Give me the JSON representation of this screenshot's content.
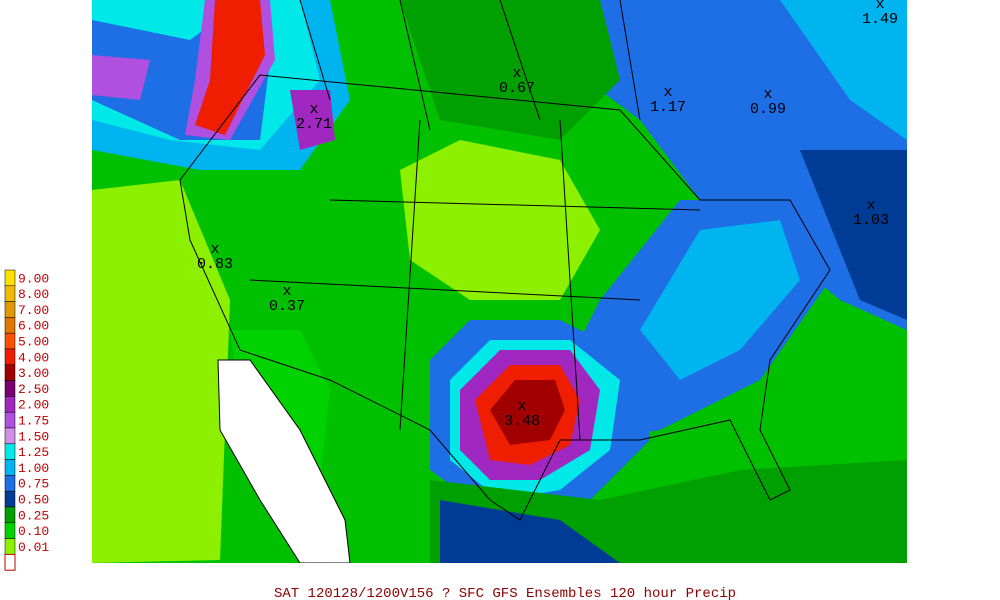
{
  "legend": [
    {
      "label": "9.00",
      "color": "#ffe000"
    },
    {
      "label": "8.00",
      "color": "#f0b800"
    },
    {
      "label": "7.00",
      "color": "#e09a00"
    },
    {
      "label": "6.00",
      "color": "#e07800"
    },
    {
      "label": "5.00",
      "color": "#ff5000"
    },
    {
      "label": "4.00",
      "color": "#f01e00"
    },
    {
      "label": "3.00",
      "color": "#a00000"
    },
    {
      "label": "2.50",
      "color": "#780070"
    },
    {
      "label": "2.00",
      "color": "#a028c0"
    },
    {
      "label": "1.75",
      "color": "#b050e0"
    },
    {
      "label": "1.50",
      "color": "#d090e8"
    },
    {
      "label": "1.25",
      "color": "#00e8e8"
    },
    {
      "label": "1.00",
      "color": "#00b4f0"
    },
    {
      "label": "0.75",
      "color": "#1e6ee6"
    },
    {
      "label": "0.50",
      "color": "#003c96"
    },
    {
      "label": "0.25",
      "color": "#00a000"
    },
    {
      "label": "0.10",
      "color": "#00d200"
    },
    {
      "label": "0.01",
      "color": "#8cf000"
    }
  ],
  "marker": "x",
  "points": [
    "1.49",
    "0.67",
    "1.17",
    "0.99",
    "1.03",
    "2.71",
    "0.83",
    "0.37",
    "3.48"
  ],
  "footer": "SAT 120128/1200V156  ? SFC GFS Ensembles 120 hour Precip"
}
